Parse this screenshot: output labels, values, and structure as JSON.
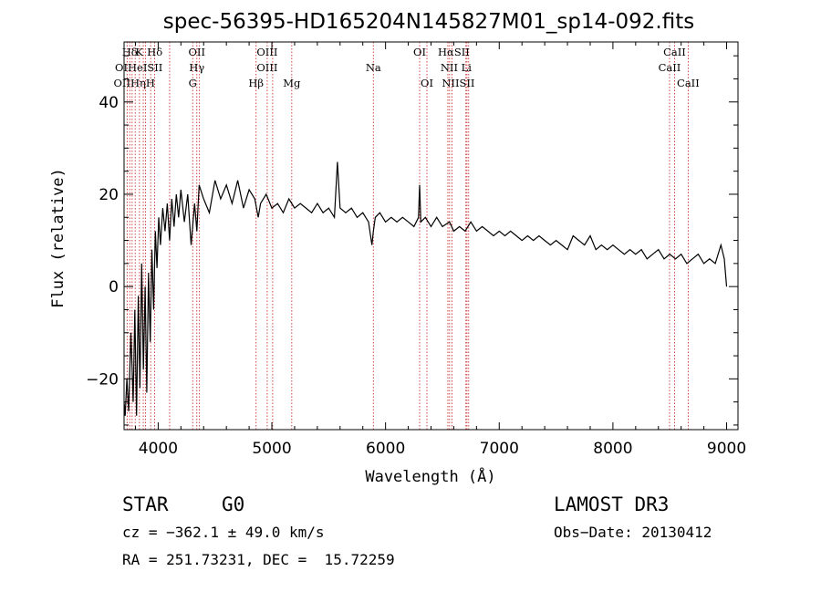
{
  "chart_data": {
    "type": "line",
    "title": "spec-56395-HD165204N145827M01_sp14-092.fits",
    "xlabel": "Wavelength (Å)",
    "ylabel": "Flux (relative)",
    "xlim": [
      3700,
      9100
    ],
    "ylim": [
      -31,
      53
    ],
    "xticks": [
      4000,
      5000,
      6000,
      7000,
      8000,
      9000
    ],
    "yticks": [
      -20,
      0,
      20,
      40
    ],
    "series": [
      {
        "name": "spectrum",
        "x": [
          3700,
          3710,
          3725,
          3740,
          3760,
          3780,
          3795,
          3810,
          3825,
          3840,
          3855,
          3870,
          3885,
          3900,
          3915,
          3930,
          3945,
          3960,
          3975,
          3990,
          4005,
          4020,
          4040,
          4060,
          4080,
          4100,
          4120,
          4140,
          4160,
          4180,
          4200,
          4230,
          4260,
          4290,
          4320,
          4340,
          4360,
          4400,
          4450,
          4500,
          4550,
          4600,
          4650,
          4700,
          4750,
          4800,
          4850,
          4880,
          4900,
          4950,
          5000,
          5050,
          5100,
          5150,
          5200,
          5250,
          5300,
          5350,
          5400,
          5450,
          5500,
          5550,
          5577,
          5600,
          5650,
          5700,
          5750,
          5800,
          5850,
          5880,
          5893,
          5910,
          5950,
          6000,
          6050,
          6100,
          6150,
          6200,
          6250,
          6290,
          6300,
          6310,
          6350,
          6400,
          6450,
          6500,
          6563,
          6600,
          6650,
          6700,
          6750,
          6800,
          6850,
          6900,
          6950,
          7000,
          7050,
          7100,
          7150,
          7200,
          7250,
          7300,
          7350,
          7400,
          7450,
          7500,
          7550,
          7600,
          7650,
          7700,
          7750,
          7800,
          7850,
          7900,
          7950,
          8000,
          8050,
          8100,
          8150,
          8200,
          8250,
          8300,
          8350,
          8400,
          8450,
          8500,
          8550,
          8600,
          8650,
          8700,
          8750,
          8800,
          8850,
          8900,
          8950,
          8980,
          9000
        ],
        "y": [
          -25,
          -28,
          -20,
          -27,
          -10,
          -25,
          -5,
          -28,
          -2,
          -22,
          5,
          -18,
          0,
          -23,
          3,
          -12,
          8,
          -5,
          12,
          4,
          15,
          9,
          17,
          12,
          18,
          10,
          19,
          13,
          20,
          15,
          21,
          14,
          20,
          9,
          18,
          12,
          22,
          19,
          16,
          23,
          19,
          22,
          18,
          23,
          17,
          21,
          19,
          15,
          18,
          20,
          17,
          18,
          16,
          19,
          17,
          18,
          17,
          16,
          18,
          16,
          17,
          15,
          27,
          17,
          16,
          17,
          15,
          16,
          14,
          9,
          12,
          15,
          16,
          14,
          15,
          14,
          15,
          14,
          13,
          15,
          22,
          14,
          15,
          13,
          15,
          13,
          14,
          12,
          13,
          12,
          14,
          12,
          13,
          12,
          11,
          12,
          11,
          12,
          11,
          10,
          11,
          10,
          11,
          10,
          9,
          10,
          9,
          8,
          11,
          10,
          9,
          11,
          8,
          9,
          8,
          9,
          8,
          7,
          8,
          7,
          8,
          6,
          7,
          8,
          6,
          7,
          6,
          7,
          5,
          6,
          7,
          5,
          6,
          5,
          9,
          6,
          0
        ]
      }
    ],
    "line_labels": [
      {
        "label": "Hδ",
        "wavelength": 3750,
        "row": 0
      },
      {
        "label": "K",
        "wavelength": 3834,
        "row": 0
      },
      {
        "label": "Hδ",
        "wavelength": 3970,
        "row": 0
      },
      {
        "label": "OII",
        "wavelength": 4340,
        "row": 0
      },
      {
        "label": "OIII",
        "wavelength": 4959,
        "row": 0
      },
      {
        "label": "OI",
        "wavelength": 6300,
        "row": 0
      },
      {
        "label": "HαSII",
        "wavelength": 6600,
        "row": 0
      },
      {
        "label": "CaII",
        "wavelength": 8542,
        "row": 0
      },
      {
        "label": "OIHeISII",
        "wavelength": 3830,
        "row": 1
      },
      {
        "label": "Hγ",
        "wavelength": 4340,
        "row": 1
      },
      {
        "label": "OIII",
        "wavelength": 4959,
        "row": 1
      },
      {
        "label": "Na",
        "wavelength": 5893,
        "row": 1
      },
      {
        "label": "NII Li",
        "wavelength": 6620,
        "row": 1
      },
      {
        "label": "CaII",
        "wavelength": 8498,
        "row": 1
      },
      {
        "label": "OIIHηH",
        "wavelength": 3790,
        "row": 2
      },
      {
        "label": "G",
        "wavelength": 4304,
        "row": 2
      },
      {
        "label": "Hβ",
        "wavelength": 4861,
        "row": 2
      },
      {
        "label": "Mg",
        "wavelength": 5175,
        "row": 2
      },
      {
        "label": "OI",
        "wavelength": 6364,
        "row": 2
      },
      {
        "label": "NIISII",
        "wavelength": 6640,
        "row": 2
      },
      {
        "label": "CaII",
        "wavelength": 8662,
        "row": 2
      }
    ],
    "marker_lines": [
      3727,
      3750,
      3771,
      3798,
      3835,
      3869,
      3889,
      3934,
      3969,
      4101,
      4304,
      4340,
      4363,
      4861,
      4959,
      5007,
      5175,
      5893,
      6300,
      6364,
      6548,
      6563,
      6584,
      6707,
      6716,
      6731,
      8498,
      8542,
      8662
    ]
  },
  "info": {
    "class": "STAR",
    "subclass": "G0",
    "survey": "LAMOST DR3",
    "cz": "cz = −362.1 ± 49.0 km/s",
    "obs_date": "Obs−Date: 20130412",
    "coords": "RA = 251.73231, DEC =  15.72259"
  }
}
